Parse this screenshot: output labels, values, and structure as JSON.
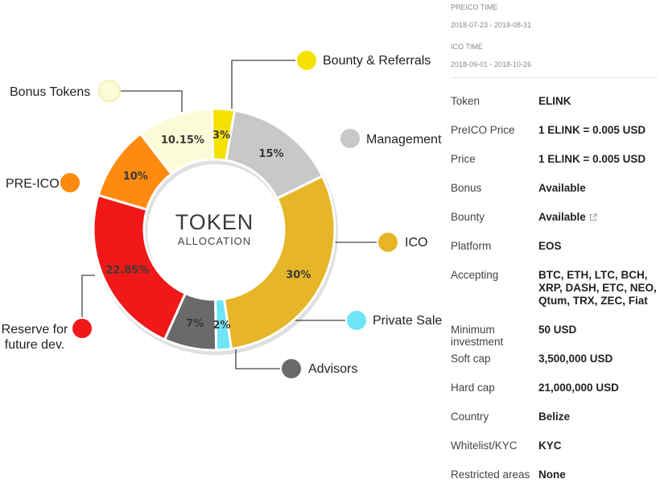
{
  "chart_data": {
    "type": "pie",
    "title": "TOKEN",
    "subtitle": "ALLOCATION",
    "slices": [
      {
        "label": "Bounty & Referrals",
        "display": "3%",
        "value": 3,
        "color": "#f5e100"
      },
      {
        "label": "Management",
        "display": "15%",
        "value": 15,
        "color": "#c8c8c8"
      },
      {
        "label": "ICO",
        "display": "30%",
        "value": 30,
        "color": "#e6b628"
      },
      {
        "label": "Private Sale",
        "display": "2%",
        "value": 2,
        "color": "#6ee4f6"
      },
      {
        "label": "Advisors",
        "display": "7%",
        "value": 7,
        "color": "#6a6a6a"
      },
      {
        "label": "Reserve for future dev.",
        "display": "22.85%",
        "value": 22.85,
        "color": "#f01818"
      },
      {
        "label": "PRE-ICO",
        "display": "10%",
        "value": 10,
        "color": "#ff8a10"
      },
      {
        "label": "Bonus Tokens",
        "display": "10.15%",
        "value": 10.15,
        "color": "#fbfbd8"
      }
    ]
  },
  "sale_periods": {
    "preico_label": "PREICO TIME",
    "preico_dates": "2018-07-23 - 2018-08-31",
    "ico_label": "ICO TIME",
    "ico_dates": "2018-09-01 - 2018-10-26"
  },
  "details": [
    {
      "key": "Token",
      "value": "ELINK"
    },
    {
      "key": "PreICO Price",
      "value": "1 ELINK = 0.005 USD"
    },
    {
      "key": "Price",
      "value": "1 ELINK = 0.005 USD"
    },
    {
      "key": "Bonus",
      "value": "Available"
    },
    {
      "key": "Bounty",
      "value": "Available",
      "icon": "external-link-icon"
    },
    {
      "key": "Platform",
      "value": "EOS"
    },
    {
      "key": "Accepting",
      "value": "BTC, ETH, LTC, BCH, XRP, DASH, ETC, NEO, Qtum, TRX, ZEC, Fiat"
    },
    {
      "key": "Minimum investment",
      "value": "50 USD"
    },
    {
      "key": "Soft cap",
      "value": "3,500,000 USD"
    },
    {
      "key": "Hard cap",
      "value": "21,000,000 USD"
    },
    {
      "key": "Country",
      "value": "Belize"
    },
    {
      "key": "Whitelist/KYC",
      "value": "KYC"
    },
    {
      "key": "Restricted areas",
      "value": "None"
    }
  ]
}
